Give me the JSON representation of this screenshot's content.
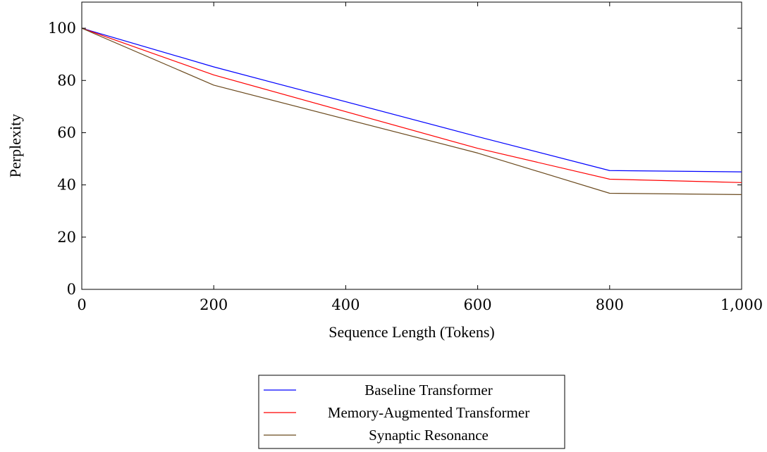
{
  "chart_data": {
    "type": "line",
    "xlabel": "Sequence Length (Tokens)",
    "ylabel": "Perplexity",
    "xlim": [
      0,
      1000
    ],
    "ylim": [
      0,
      110
    ],
    "xticks": [
      0,
      200,
      400,
      600,
      800,
      1000
    ],
    "xtick_labels": [
      "0",
      "200",
      "400",
      "600",
      "800",
      "1,000"
    ],
    "yticks": [
      0,
      20,
      40,
      60,
      80,
      100
    ],
    "ytick_labels": [
      "0",
      "20",
      "40",
      "60",
      "80",
      "100"
    ],
    "grid": false,
    "legend_position": "bottom-center",
    "x": [
      0,
      200,
      600,
      800,
      1000
    ],
    "series": [
      {
        "name": "Baseline Transformer",
        "color": "#0000ff",
        "values": [
          100,
          85.2,
          58.5,
          45.5,
          45
        ]
      },
      {
        "name": "Memory-Augmented Transformer",
        "color": "#ff0000",
        "values": [
          100,
          82.1,
          54,
          42.2,
          40.9
        ]
      },
      {
        "name": "Synaptic Resonance",
        "color": "#6b4a1e",
        "values": [
          100,
          78.2,
          52.2,
          36.8,
          36.3
        ]
      }
    ]
  }
}
